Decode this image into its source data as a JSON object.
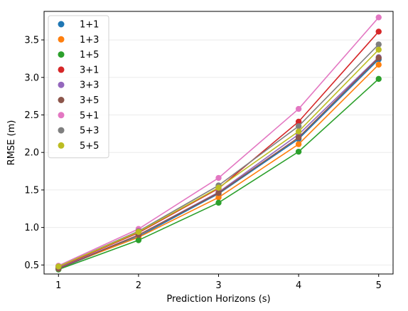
{
  "chart_data": {
    "type": "line",
    "xlabel": "Prediction Horizons (s)",
    "ylabel": "RMSE (m)",
    "x": [
      1,
      2,
      3,
      4,
      5
    ],
    "xlim": [
      0.82,
      5.18
    ],
    "ylim": [
      0.38,
      3.88
    ],
    "xticks": [
      1,
      2,
      3,
      4,
      5
    ],
    "yticks": [
      0.5,
      1.0,
      1.5,
      2.0,
      2.5,
      3.0,
      3.5
    ],
    "ytick_labels": [
      "0.5",
      "1.0",
      "1.5",
      "2.0",
      "2.5",
      "3.0",
      "3.5"
    ],
    "grid": "horizontal, faint",
    "legend_position": "top-left",
    "series": [
      {
        "name": "1+1",
        "color": "#1f77b4",
        "values": [
          0.45,
          0.88,
          1.45,
          2.18,
          3.24
        ]
      },
      {
        "name": "1+3",
        "color": "#ff7f0e",
        "values": [
          0.46,
          0.87,
          1.4,
          2.11,
          3.17
        ]
      },
      {
        "name": "1+5",
        "color": "#2ca02c",
        "values": [
          0.44,
          0.83,
          1.33,
          2.01,
          2.98
        ]
      },
      {
        "name": "3+1",
        "color": "#d62728",
        "values": [
          0.47,
          0.93,
          1.52,
          2.41,
          3.61
        ]
      },
      {
        "name": "3+3",
        "color": "#9467bd",
        "values": [
          0.46,
          0.9,
          1.47,
          2.24,
          3.27
        ]
      },
      {
        "name": "3+5",
        "color": "#8c564b",
        "values": [
          0.45,
          0.9,
          1.46,
          2.2,
          3.26
        ]
      },
      {
        "name": "5+1",
        "color": "#e377c2",
        "values": [
          0.49,
          0.98,
          1.66,
          2.58,
          3.8
        ]
      },
      {
        "name": "5+3",
        "color": "#7f7f7f",
        "values": [
          0.48,
          0.95,
          1.56,
          2.35,
          3.44
        ]
      },
      {
        "name": "5+5",
        "color": "#bcbd22",
        "values": [
          0.48,
          0.94,
          1.53,
          2.28,
          3.37
        ]
      }
    ]
  }
}
